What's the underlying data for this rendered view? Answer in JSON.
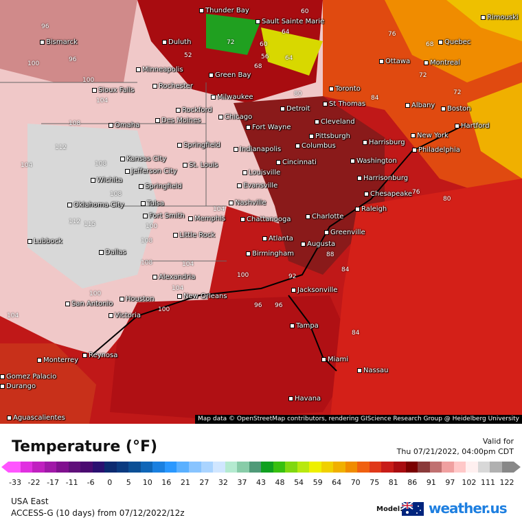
{
  "map": {
    "attribution": "Map data © OpenStreetMap contributors, rendering GIScience Research Group @ Heidelberg University",
    "cities": [
      "Thunder Bay",
      "Duluth",
      "Bismarck",
      "Minneapolis",
      "Sault Sainte Marie",
      "Green Bay",
      "Rochester",
      "Sioux Falls",
      "Ottawa",
      "Montreal",
      "Quebec",
      "Rimouski",
      "Toronto",
      "Milwaukee",
      "Rockford",
      "Chicago",
      "Detroit",
      "St Thomas",
      "Albany",
      "Boston",
      "Des Moines",
      "Omaha",
      "Fort Wayne",
      "Cleveland",
      "Hartford",
      "New York",
      "Pittsburgh",
      "Harrisburg",
      "Philadelphia",
      "Springfield",
      "Indianapolis",
      "Columbus",
      "Kansas City",
      "Jefferson City",
      "St. Louis",
      "Cincinnati",
      "Washington",
      "Louisville",
      "Wichita",
      "Springfield",
      "Evansville",
      "Harrisonburg",
      "Chesapeake",
      "Nashville",
      "Oklahoma City",
      "Tulsa",
      "Fort Smith",
      "Memphis",
      "Raleigh",
      "Charlotte",
      "Chattanooga",
      "Little Rock",
      "Greenville",
      "Atlanta",
      "Augusta",
      "Lubbock",
      "Birmingham",
      "Dallas",
      "Alexandria",
      "Jacksonville",
      "Houston",
      "New Orleans",
      "San Antonio",
      "Victoria",
      "Tampa",
      "Reynosa",
      "Monterrey",
      "Miami",
      "Nassau",
      "Havana",
      "Gomez Palacio",
      "Durango",
      "Aguascalientes"
    ],
    "contour_labels": [
      "96",
      "100",
      "96",
      "100",
      "104",
      "108",
      "112",
      "104",
      "108",
      "108",
      "112",
      "115",
      "100",
      "108",
      "104",
      "104",
      "108",
      "100",
      "104",
      "100",
      "96",
      "96",
      "100",
      "104",
      "88",
      "92",
      "84",
      "84",
      "76",
      "80",
      "72",
      "64",
      "60",
      "56",
      "52",
      "68",
      "72",
      "80",
      "84",
      "60",
      "64",
      "76",
      "72",
      "68"
    ]
  },
  "legend": {
    "title": "Temperature (°F)",
    "valid_label": "Valid for",
    "valid_time": "Thu 07/21/2022, 04:00pm CDT",
    "ticks": [
      "-33",
      "-22",
      "-17",
      "-11",
      "-6",
      "0",
      "5",
      "10",
      "16",
      "21",
      "27",
      "32",
      "37",
      "43",
      "48",
      "54",
      "59",
      "64",
      "70",
      "75",
      "81",
      "86",
      "91",
      "97",
      "102",
      "111",
      "122"
    ],
    "colors": [
      "#ff55ff",
      "#e030e0",
      "#c020c0",
      "#a018a8",
      "#80108f",
      "#60107a",
      "#4a0a70",
      "#2a1070",
      "#0c2a70",
      "#0a3a80",
      "#0b4f95",
      "#0f66b8",
      "#1a80e0",
      "#2a98ff",
      "#5ab0ff",
      "#88c4ff",
      "#aad4ff",
      "#d0e6ff",
      "#b4ead0",
      "#88cca8",
      "#4f9a78",
      "#10a020",
      "#38c010",
      "#80d810",
      "#b8e810",
      "#eef000",
      "#f0d000",
      "#f0b000",
      "#f08c00",
      "#f06010",
      "#e03818",
      "#c81c18",
      "#a80c10",
      "#7a0000",
      "#8a3a3a",
      "#c07070",
      "#f0a0a0",
      "#ffc8c8",
      "#fff0f0",
      "#d8d8d8",
      "#b0b0b0",
      "#888888"
    ],
    "region": "USA East",
    "model_run": "ACCESS-G (10 days) from 07/12/2022/12z",
    "model_label": "Model:",
    "brand": "weather.us"
  }
}
